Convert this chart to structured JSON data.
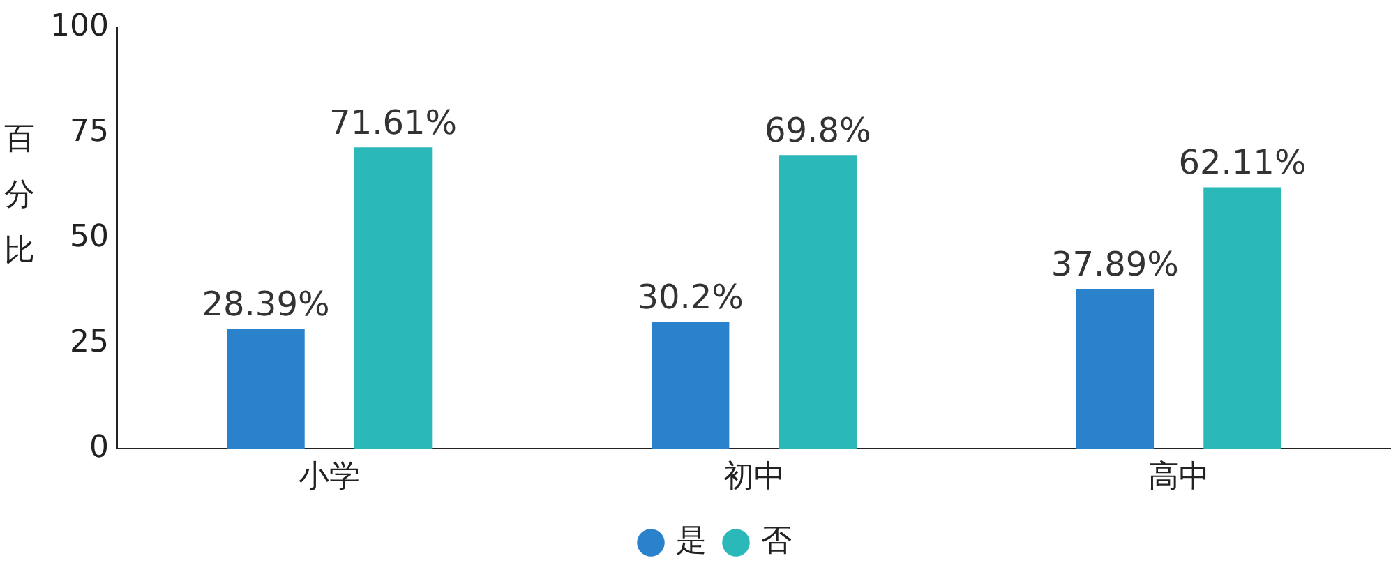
{
  "chart_data": {
    "type": "bar",
    "ylabel": "百分比",
    "categories": [
      "小学",
      "初中",
      "高中"
    ],
    "series": [
      {
        "name": "是",
        "color": "#2a82cc",
        "values": [
          28.39,
          30.2,
          37.89
        ],
        "value_labels": [
          "28.39%",
          "30.2%",
          "37.89%"
        ]
      },
      {
        "name": "否",
        "color": "#2bb8b8",
        "values": [
          71.61,
          69.8,
          62.11
        ],
        "value_labels": [
          "71.61%",
          "69.8%",
          "62.11%"
        ]
      }
    ],
    "ylim": [
      0,
      100
    ],
    "yticks": [
      0,
      25,
      50,
      75,
      100
    ],
    "grid": false,
    "legend": "bottom"
  }
}
